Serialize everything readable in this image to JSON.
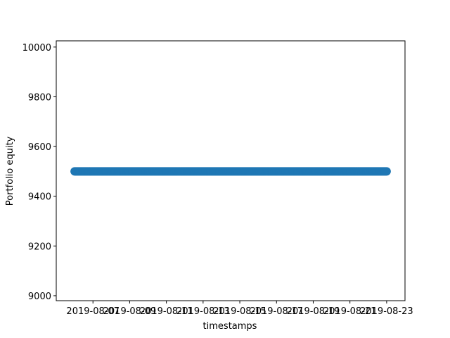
{
  "chart_data": {
    "type": "scatter",
    "title": "",
    "xlabel": "timestamps",
    "ylabel": "Portfolio equity",
    "x_type": "date",
    "x_start": "2019-08-06",
    "x_end": "2019-08-23",
    "xlim": [
      "2019-08-05",
      "2019-08-24"
    ],
    "ylim": [
      8980,
      10025
    ],
    "y_constant_value": 9500,
    "xticks": [
      "2019-08-07",
      "2019-08-09",
      "2019-08-11",
      "2019-08-13",
      "2019-08-15",
      "2019-08-17",
      "2019-08-19",
      "2019-08-21",
      "2019-08-23"
    ],
    "xtick_labels": [
      "2019-08-07",
      "2019-08-09",
      "2019-08-11",
      "2019-08-13",
      "2019-08-15",
      "2019-08-17",
      "2019-08-19",
      "2019-08-21",
      "2019-08-23"
    ],
    "yticks": [
      9000,
      9200,
      9400,
      9600,
      9800,
      10000
    ],
    "ytick_labels": [
      "9000",
      "9200",
      "9400",
      "9600",
      "9800",
      "10000"
    ],
    "grid": false,
    "legend": "none",
    "marker": "circle",
    "colors": {
      "series": "#1f77b4",
      "axes": "#000000",
      "background": "#ffffff"
    }
  }
}
